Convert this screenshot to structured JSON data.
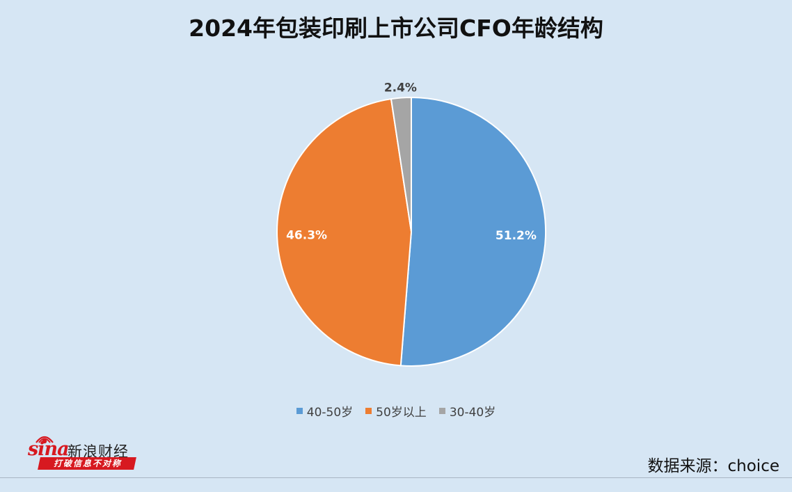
{
  "chart_data": {
    "type": "pie",
    "title": "2024年包装印刷上市公司CFO年龄结构",
    "slices": [
      {
        "label": "40-50岁",
        "value": 51.2,
        "display": "51.2%",
        "color": "#5b9bd5"
      },
      {
        "label": "50岁以上",
        "value": 46.3,
        "display": "46.3%",
        "color": "#ed7d31"
      },
      {
        "label": "30-40岁",
        "value": 2.4,
        "display": "2.4%",
        "color": "#a5a5a5"
      }
    ],
    "legend_position": "bottom",
    "start_angle": "12 o'clock",
    "direction": "clockwise"
  },
  "branding": {
    "logo_word": "sina",
    "logo_cn": "新浪财经",
    "slogan": "打破信息不对称"
  },
  "source": "数据来源：choice"
}
